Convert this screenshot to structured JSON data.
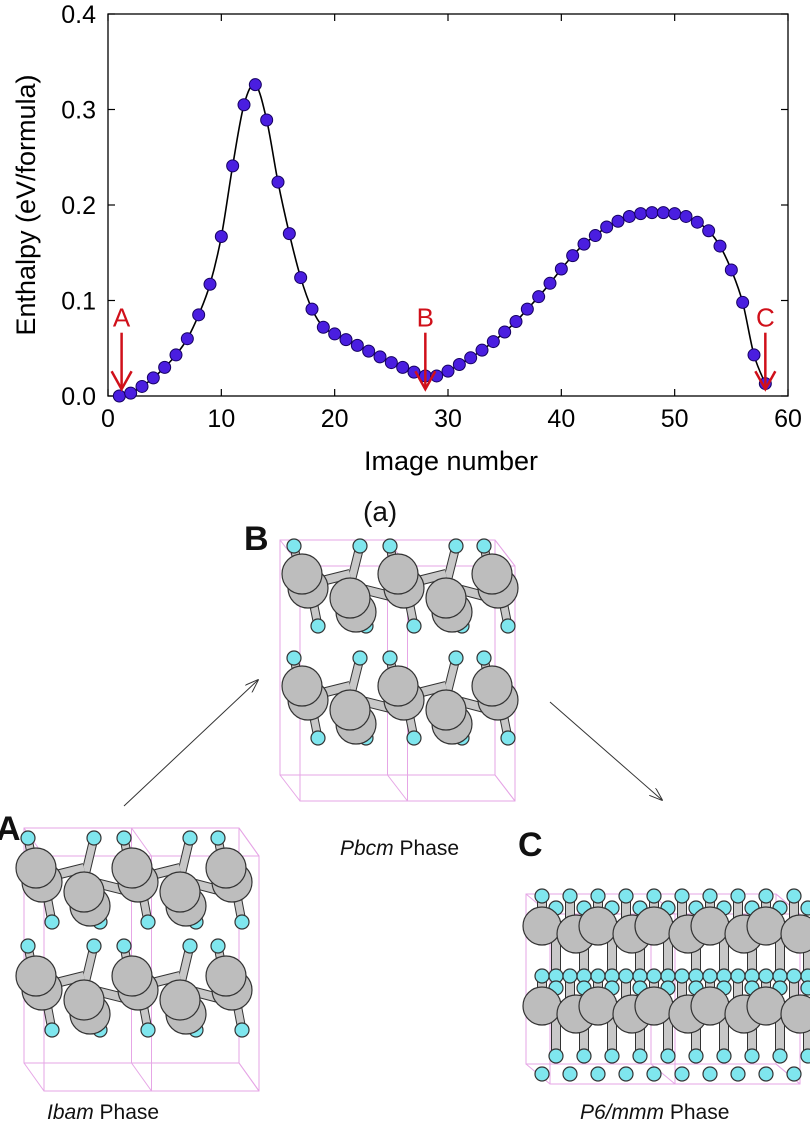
{
  "chart_data": {
    "type": "line",
    "title": "",
    "xlabel": "Image number",
    "ylabel": "Enthalpy (eV/formula)",
    "xlim": [
      0,
      60
    ],
    "ylim": [
      0,
      0.4
    ],
    "xticks": [
      "0",
      "10",
      "20",
      "30",
      "40",
      "50",
      "60"
    ],
    "yticks": [
      "0.0",
      "0.1",
      "0.2",
      "0.3",
      "0.4"
    ],
    "grid": false,
    "legend": "none",
    "series": [
      {
        "x": [
          1,
          2,
          3,
          4,
          5,
          6,
          7,
          8,
          9,
          10,
          11,
          12,
          13,
          14,
          15,
          16,
          17,
          18,
          19,
          20,
          21,
          22,
          23,
          24,
          25,
          26,
          27,
          28,
          29,
          30,
          31,
          32,
          33,
          34,
          35,
          36,
          37,
          38,
          39,
          40,
          41,
          42,
          43,
          44,
          45,
          46,
          47,
          48,
          49,
          50,
          51,
          52,
          53,
          54,
          55,
          56,
          57,
          58
        ],
        "y": [
          0.0,
          0.003,
          0.01,
          0.019,
          0.03,
          0.043,
          0.06,
          0.085,
          0.117,
          0.167,
          0.241,
          0.305,
          0.326,
          0.289,
          0.224,
          0.17,
          0.124,
          0.091,
          0.072,
          0.065,
          0.059,
          0.053,
          0.047,
          0.041,
          0.035,
          0.03,
          0.025,
          0.021,
          0.021,
          0.026,
          0.033,
          0.04,
          0.048,
          0.057,
          0.067,
          0.078,
          0.091,
          0.104,
          0.118,
          0.133,
          0.147,
          0.159,
          0.168,
          0.177,
          0.183,
          0.188,
          0.191,
          0.192,
          0.192,
          0.191,
          0.188,
          0.182,
          0.173,
          0.157,
          0.132,
          0.098,
          0.043,
          0.013
        ]
      }
    ],
    "annotations": [
      {
        "label": "A",
        "x": 1.2,
        "y": 0.06
      },
      {
        "label": "B",
        "x": 28,
        "y": 0.06
      },
      {
        "label": "C",
        "x": 58,
        "y": 0.06
      }
    ],
    "marker_color": "#4a1ee0",
    "arrow_color": "#d0101a"
  },
  "figure": {
    "subcaption": "(a)",
    "panels": [
      {
        "letter": "A",
        "phase_italic": "Ibam",
        "phase_text": " Phase"
      },
      {
        "letter": "B",
        "phase_italic": "Pbcm",
        "phase_text": " Phase"
      },
      {
        "letter": "C",
        "phase_italic": "P6/mmm",
        "phase_text": " Phase"
      }
    ],
    "colors": {
      "atom_large": "#bdbdbd",
      "atom_small": "#7fe6ee",
      "cell_box": "#e6a6e6",
      "transition_arrow": "#333333"
    }
  }
}
